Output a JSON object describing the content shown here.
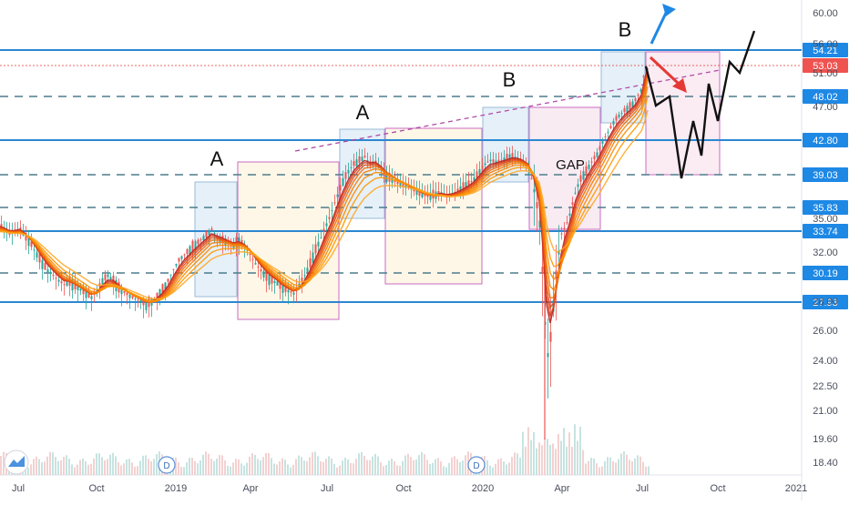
{
  "chart_data": {
    "type": "candlestick",
    "x_ticks": [
      "Jul",
      "Oct",
      "2019",
      "Apr",
      "Jul",
      "Oct",
      "2020",
      "Apr",
      "Jul",
      "Oct",
      "2021"
    ],
    "y_ticks": [
      "60.00",
      "56.00",
      "51.00",
      "47.00",
      "35.00",
      "32.00",
      "28.00",
      "26.00",
      "24.00",
      "22.50",
      "21.00",
      "19.60",
      "18.40"
    ],
    "price_levels": [
      {
        "label": "54.21",
        "value": 54.21,
        "style": "solid"
      },
      {
        "label": "48.02",
        "value": 48.02,
        "style": "dashed"
      },
      {
        "label": "42.80",
        "value": 42.8,
        "style": "solid"
      },
      {
        "label": "39.03",
        "value": 39.03,
        "style": "dashed"
      },
      {
        "label": "35.83",
        "value": 35.83,
        "style": "dashed"
      },
      {
        "label": "33.74",
        "value": 33.74,
        "style": "solid"
      },
      {
        "label": "30.19",
        "value": 30.19,
        "style": "dashed"
      },
      {
        "label": "27.93",
        "value": 27.93,
        "style": "solid"
      }
    ],
    "current_price": {
      "label": "53.03",
      "value": 53.03
    },
    "annotations": [
      "A",
      "A",
      "B",
      "B",
      "GAP"
    ],
    "dividend_markers": [
      "D",
      "D"
    ],
    "series_close": [
      [
        0,
        34.2
      ],
      [
        5,
        33.9
      ],
      [
        10,
        33.6
      ],
      [
        16,
        33.8
      ],
      [
        22,
        34.0
      ],
      [
        28,
        33.2
      ],
      [
        34,
        32.6
      ],
      [
        40,
        31.8
      ],
      [
        46,
        31.0
      ],
      [
        52,
        30.4
      ],
      [
        58,
        30.0
      ],
      [
        64,
        29.6
      ],
      [
        70,
        29.3
      ],
      [
        76,
        29.5
      ],
      [
        82,
        29.2
      ],
      [
        88,
        28.9
      ],
      [
        94,
        28.6
      ],
      [
        100,
        28.3
      ],
      [
        106,
        28.8
      ],
      [
        112,
        29.6
      ],
      [
        118,
        30.0
      ],
      [
        124,
        29.6
      ],
      [
        130,
        29.0
      ],
      [
        136,
        28.7
      ],
      [
        142,
        28.4
      ],
      [
        148,
        28.2
      ],
      [
        154,
        28.0
      ],
      [
        160,
        27.8
      ],
      [
        166,
        28.0
      ],
      [
        172,
        28.4
      ],
      [
        178,
        28.9
      ],
      [
        184,
        29.6
      ],
      [
        190,
        30.5
      ],
      [
        196,
        31.3
      ],
      [
        202,
        31.8
      ],
      [
        208,
        32.2
      ],
      [
        214,
        32.6
      ],
      [
        220,
        33.0
      ],
      [
        226,
        33.4
      ],
      [
        232,
        33.9
      ],
      [
        238,
        33.2
      ],
      [
        244,
        33.0
      ],
      [
        250,
        32.8
      ],
      [
        256,
        32.6
      ],
      [
        262,
        32.9
      ],
      [
        268,
        32.5
      ],
      [
        274,
        31.8
      ],
      [
        280,
        31.0
      ],
      [
        286,
        30.4
      ],
      [
        292,
        29.9
      ],
      [
        298,
        29.6
      ],
      [
        304,
        29.4
      ],
      [
        310,
        29.0
      ],
      [
        316,
        28.8
      ],
      [
        322,
        28.6
      ],
      [
        328,
        29.2
      ],
      [
        334,
        30.0
      ],
      [
        340,
        31.0
      ],
      [
        346,
        32.2
      ],
      [
        352,
        33.2
      ],
      [
        358,
        34.4
      ],
      [
        364,
        35.6
      ],
      [
        370,
        37.0
      ],
      [
        376,
        38.4
      ],
      [
        382,
        39.4
      ],
      [
        388,
        40.2
      ],
      [
        394,
        40.6
      ],
      [
        400,
        41.0
      ],
      [
        406,
        40.2
      ],
      [
        412,
        40.4
      ],
      [
        418,
        39.6
      ],
      [
        424,
        38.8
      ],
      [
        430,
        38.6
      ],
      [
        436,
        38.2
      ],
      [
        442,
        38.0
      ],
      [
        448,
        37.8
      ],
      [
        454,
        37.5
      ],
      [
        460,
        37.2
      ],
      [
        466,
        37.0
      ],
      [
        472,
        37.0
      ],
      [
        478,
        37.1
      ],
      [
        484,
        37.3
      ],
      [
        490,
        37.0
      ],
      [
        496,
        37.2
      ],
      [
        502,
        37.5
      ],
      [
        508,
        37.8
      ],
      [
        514,
        38.2
      ],
      [
        520,
        38.6
      ],
      [
        526,
        39.4
      ],
      [
        532,
        40.2
      ],
      [
        538,
        40.6
      ],
      [
        544,
        40.4
      ],
      [
        550,
        40.6
      ],
      [
        556,
        40.8
      ],
      [
        562,
        41.0
      ],
      [
        568,
        40.8
      ],
      [
        574,
        40.4
      ],
      [
        580,
        39.8
      ],
      [
        586,
        37.5
      ],
      [
        592,
        34.5
      ],
      [
        596,
        29.0
      ],
      [
        600,
        24.0
      ],
      [
        604,
        25.5
      ],
      [
        608,
        28.5
      ],
      [
        612,
        31.5
      ],
      [
        616,
        33.5
      ],
      [
        620,
        34.2
      ],
      [
        624,
        35.0
      ],
      [
        628,
        36.2
      ],
      [
        632,
        37.6
      ],
      [
        638,
        38.8
      ],
      [
        644,
        39.6
      ],
      [
        650,
        40.6
      ],
      [
        656,
        41.4
      ],
      [
        662,
        42.8
      ],
      [
        668,
        44.0
      ],
      [
        674,
        45.2
      ],
      [
        680,
        46.0
      ],
      [
        686,
        46.6
      ],
      [
        692,
        47.0
      ],
      [
        698,
        47.8
      ],
      [
        704,
        49.0
      ],
      [
        708,
        52.0
      ],
      [
        711,
        54.0
      ]
    ]
  }
}
